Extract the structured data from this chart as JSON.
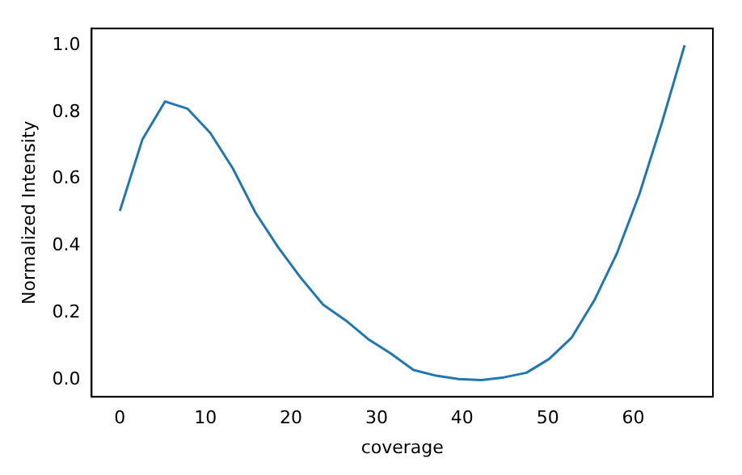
{
  "chart_data": {
    "type": "line",
    "xlabel": "coverage",
    "ylabel": "Normalized Intensity",
    "x": [
      0,
      2.64,
      5.28,
      7.92,
      10.56,
      13.2,
      15.84,
      18.48,
      21.12,
      23.76,
      26.4,
      29.04,
      31.68,
      34.32,
      36.96,
      39.6,
      42.24,
      44.88,
      47.52,
      50.16,
      52.8,
      55.44,
      58.08,
      60.72,
      63.36,
      66.0
    ],
    "series": [
      {
        "color": "#1f77b4",
        "values": [
          0.505,
          0.719,
          0.832,
          0.81,
          0.738,
          0.632,
          0.5,
          0.397,
          0.306,
          0.225,
          0.178,
          0.122,
          0.079,
          0.03,
          0.013,
          0.003,
          0,
          0.008,
          0.022,
          0.063,
          0.127,
          0.238,
          0.378,
          0.556,
          0.77,
          1.0
        ]
      }
    ],
    "xlim": [
      -3.3,
      69.3
    ],
    "xticks": [
      0,
      10,
      20,
      30,
      40,
      50,
      60
    ],
    "ylim": [
      -0.05,
      1.05
    ],
    "yticks": [
      {
        "value": 0,
        "label": "0.0"
      },
      {
        "value": 0.2,
        "label": "0.2"
      },
      {
        "value": 0.4,
        "label": "0.4"
      },
      {
        "value": 0.6,
        "label": "0.6"
      },
      {
        "value": 0.8,
        "label": "0.8"
      },
      {
        "value": 1,
        "label": "1.0"
      }
    ],
    "grid": false,
    "legend": false,
    "marker": "none",
    "line_style": "solid"
  }
}
